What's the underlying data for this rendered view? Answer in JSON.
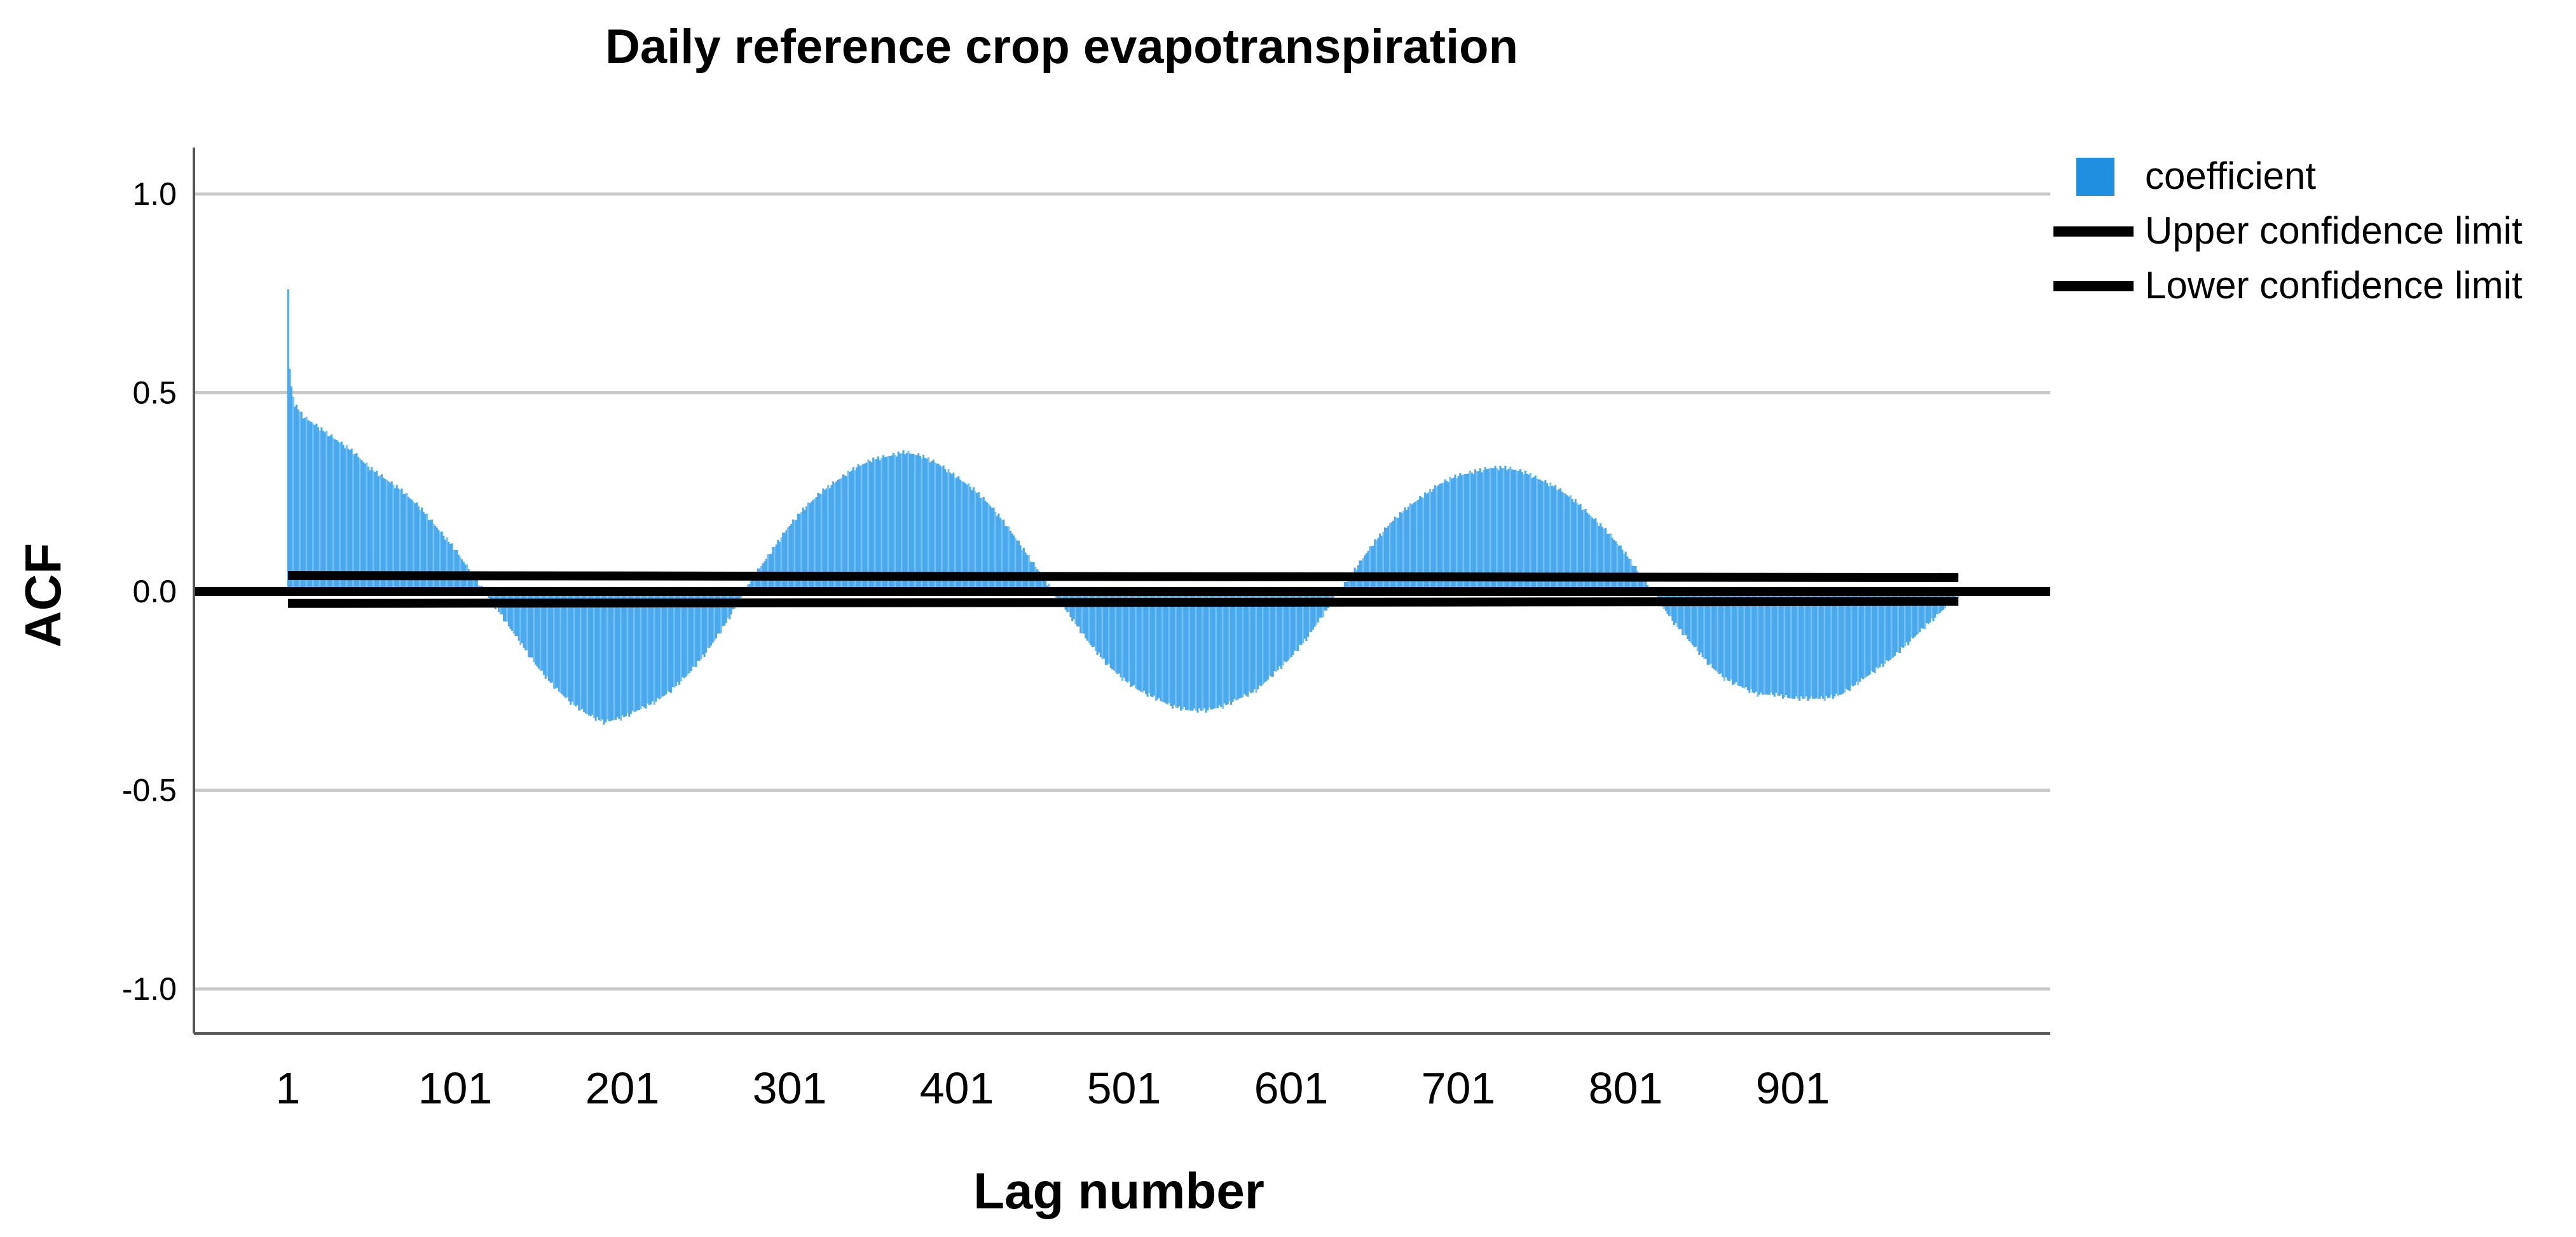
{
  "chart_data": {
    "type": "bar",
    "title": "Daily reference crop evapotranspiration",
    "xlabel": "Lag number",
    "ylabel": "ACF",
    "x_tick_labels": [
      "1",
      "101",
      "201",
      "301",
      "401",
      "501",
      "601",
      "701",
      "801",
      "901"
    ],
    "y_tick_labels": [
      "1.0",
      "0.5",
      "0.0",
      "-0.5",
      "-1.0"
    ],
    "ylim": [
      -1.1,
      1.1
    ],
    "lag_range": [
      1,
      1000
    ],
    "grid": "horizontal",
    "legend_position": "top-right",
    "series": [
      {
        "name": "coefficient",
        "kind": "bar",
        "color": "#1f8fe0",
        "x": [
          1,
          2,
          3,
          5,
          10,
          20,
          30,
          40,
          50,
          60,
          70,
          80,
          90,
          100,
          110,
          120,
          130,
          140,
          150,
          160,
          170,
          180,
          190,
          200,
          210,
          220,
          230,
          240,
          250,
          260,
          270,
          280,
          290,
          300,
          310,
          320,
          330,
          340,
          350,
          360,
          370,
          380,
          390,
          400,
          410,
          420,
          430,
          440,
          450,
          460,
          470,
          480,
          490,
          500,
          510,
          520,
          530,
          540,
          550,
          560,
          570,
          580,
          590,
          600,
          610,
          620,
          630,
          640,
          650,
          660,
          670,
          680,
          690,
          700,
          710,
          720,
          730,
          740,
          750,
          760,
          770,
          780,
          790,
          800,
          810,
          820,
          830,
          840,
          850,
          860,
          870,
          880,
          890,
          900,
          910,
          920,
          930,
          940,
          950,
          960,
          970,
          980,
          990,
          1000
        ],
        "values": [
          0.76,
          0.56,
          0.51,
          0.47,
          0.44,
          0.41,
          0.38,
          0.35,
          0.31,
          0.28,
          0.25,
          0.21,
          0.16,
          0.11,
          0.05,
          -0.01,
          -0.07,
          -0.13,
          -0.19,
          -0.24,
          -0.28,
          -0.31,
          -0.33,
          -0.32,
          -0.3,
          -0.28,
          -0.25,
          -0.21,
          -0.16,
          -0.1,
          -0.03,
          0.04,
          0.1,
          0.16,
          0.21,
          0.25,
          0.28,
          0.31,
          0.33,
          0.34,
          0.35,
          0.34,
          0.32,
          0.29,
          0.26,
          0.22,
          0.17,
          0.11,
          0.05,
          -0.01,
          -0.07,
          -0.13,
          -0.18,
          -0.22,
          -0.25,
          -0.27,
          -0.29,
          -0.3,
          -0.3,
          -0.29,
          -0.27,
          -0.25,
          -0.21,
          -0.17,
          -0.12,
          -0.06,
          0.0,
          0.06,
          0.12,
          0.17,
          0.21,
          0.24,
          0.27,
          0.29,
          0.3,
          0.31,
          0.31,
          0.3,
          0.28,
          0.26,
          0.23,
          0.19,
          0.15,
          0.1,
          0.04,
          -0.02,
          -0.08,
          -0.13,
          -0.18,
          -0.22,
          -0.24,
          -0.26,
          -0.26,
          -0.27,
          -0.27,
          -0.27,
          -0.26,
          -0.23,
          -0.2,
          -0.17,
          -0.13,
          -0.09,
          -0.05,
          -0.01
        ]
      },
      {
        "name": "Upper confidence limit",
        "kind": "line",
        "color": "#000000",
        "x": [
          1,
          1000
        ],
        "values": [
          0.04,
          0.035
        ]
      },
      {
        "name": "Lower confidence limit",
        "kind": "line",
        "color": "#000000",
        "x": [
          1,
          1000
        ],
        "values": [
          -0.03,
          -0.025
        ]
      }
    ]
  }
}
